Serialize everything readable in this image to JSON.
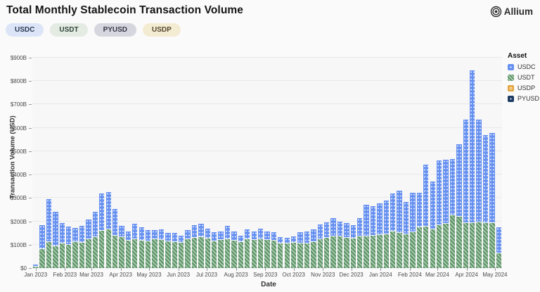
{
  "page": {
    "title": "Total Monthly Stablecoin Transaction Volume",
    "background": "#fafafa"
  },
  "brand": {
    "name": "Allium",
    "icon": "concentric-circles-icon",
    "color": "#2d2d2d"
  },
  "filter_badges": [
    {
      "label": "USDC",
      "bg": "#dbe5f7",
      "text": "#2c3a55"
    },
    {
      "label": "USDT",
      "bg": "#e3ebe3",
      "text": "#32463a"
    },
    {
      "label": "PYUSD",
      "bg": "#d6d6df",
      "text": "#38384a"
    },
    {
      "label": "USDP",
      "bg": "#f4ebd3",
      "text": "#55492e"
    }
  ],
  "legend": {
    "title": "Asset",
    "items": [
      {
        "label": "USDC",
        "color": "#6791f0",
        "pattern": "dots"
      },
      {
        "label": "USDT",
        "color": "#60986a",
        "pattern": "diag"
      },
      {
        "label": "USDP",
        "color": "#e2a43b",
        "pattern": "ring"
      },
      {
        "label": "PYUSD",
        "color": "#1d3b63",
        "pattern": "dot1"
      }
    ]
  },
  "chart_data": {
    "type": "bar",
    "stacked": true,
    "title": "Total Monthly Stablecoin Transaction Volume",
    "xlabel": "Date",
    "ylabel": "Transaction Volume (USD)",
    "unit": "billions USD",
    "ylim": [
      0,
      900
    ],
    "y_ticks": [
      {
        "label": "$0",
        "value": 0
      },
      {
        "label": "$100B",
        "value": 100
      },
      {
        "label": "$200B",
        "value": 200
      },
      {
        "label": "$300B",
        "value": 300
      },
      {
        "label": "$400B",
        "value": 400
      },
      {
        "label": "$500B",
        "value": 500
      },
      {
        "label": "$600B",
        "value": 600
      },
      {
        "label": "$700B",
        "value": 700
      },
      {
        "label": "$800B",
        "value": 800
      },
      {
        "label": "$900B",
        "value": 900
      }
    ],
    "x_tick_labels": [
      "Jan 2023",
      "Feb 2023",
      "Mar 2023",
      "Apr 2023",
      "May 2023",
      "Jun 2023",
      "Jul 2023",
      "Aug 2023",
      "Sep 2023",
      "Oct 2023",
      "Nov 2023",
      "Dec 2023",
      "Jan 2024",
      "Feb 2024",
      "Mar 2024",
      "Apr 2024",
      "May 2024"
    ],
    "x_tick_days": [
      0,
      31,
      59,
      90,
      120,
      151,
      181,
      212,
      243,
      273,
      304,
      334,
      365,
      396,
      425,
      456,
      486
    ],
    "bar_count": 71,
    "bar_granularity": "weekly",
    "grid": true,
    "legend_position": "right",
    "series": [
      {
        "name": "USDT",
        "color": "#60986a",
        "values": [
          6,
          82,
          112,
          93,
          105,
          98,
          110,
          108,
          123,
          131,
          160,
          165,
          138,
          132,
          118,
          123,
          118,
          115,
          123,
          121,
          114,
          112,
          108,
          123,
          129,
          133,
          126,
          114,
          119,
          122,
          116,
          111,
          124,
          121,
          124,
          119,
          117,
          104,
          106,
          109,
          106,
          104,
          112,
          124,
          129,
          136,
          134,
          129,
          126,
          134,
          136,
          139,
          142,
          146,
          158,
          150,
          144,
          155,
          175,
          177,
          165,
          185,
          190,
          225,
          219,
          194,
          192,
          196,
          194,
          192,
          63
        ]
      },
      {
        "name": "USDC",
        "color": "#6791f0",
        "values": [
          9,
          101,
          184,
          147,
          87,
          80,
          61,
          72,
          84,
          110,
          158,
          160,
          114,
          49,
          39,
          66,
          57,
          47,
          39,
          44,
          37,
          39,
          30,
          39,
          54,
          57,
          44,
          39,
          38,
          58,
          41,
          28,
          41,
          36,
          46,
          38,
          38,
          30,
          23,
          27,
          47,
          53,
          55,
          64,
          66,
          79,
          66,
          64,
          59,
          81,
          135,
          127,
          134,
          142,
          162,
          180,
          140,
          168,
          148,
          265,
          204,
          275,
          274,
          241,
          311,
          441,
          654,
          439,
          376,
          386,
          111
        ]
      },
      {
        "name": "USDP",
        "color": "#e2a43b",
        "values": [
          0,
          0,
          0,
          0,
          0,
          0,
          0,
          0,
          0,
          0,
          0,
          0,
          0,
          0,
          0,
          0,
          0,
          0,
          0,
          0,
          0,
          0,
          0,
          0,
          0,
          0,
          0,
          0,
          0,
          0,
          0,
          0,
          0,
          0,
          0,
          0,
          0,
          0,
          0,
          0,
          0,
          0,
          0,
          0,
          0,
          0,
          0,
          0,
          0,
          0,
          0,
          0,
          0,
          0,
          0,
          0,
          0,
          0,
          0,
          0,
          0,
          0,
          0,
          0,
          0,
          0,
          0,
          0,
          0,
          0,
          0
        ]
      },
      {
        "name": "PYUSD",
        "color": "#1d3b63",
        "values": [
          0,
          0,
          0,
          0,
          0,
          0,
          0,
          0,
          0,
          0,
          0,
          0,
          0,
          0,
          0,
          0,
          0,
          0,
          0,
          0,
          0,
          0,
          0,
          0,
          0,
          0,
          0,
          0,
          0,
          0,
          0,
          0,
          0,
          0,
          0,
          0,
          0,
          0,
          0,
          0,
          0,
          0,
          0,
          0,
          0,
          0,
          0,
          0,
          0,
          0,
          0,
          0,
          0,
          0,
          0,
          0,
          0,
          0,
          0,
          0,
          0,
          0,
          0,
          0,
          0,
          0,
          0,
          0,
          0,
          0,
          0
        ]
      }
    ]
  }
}
